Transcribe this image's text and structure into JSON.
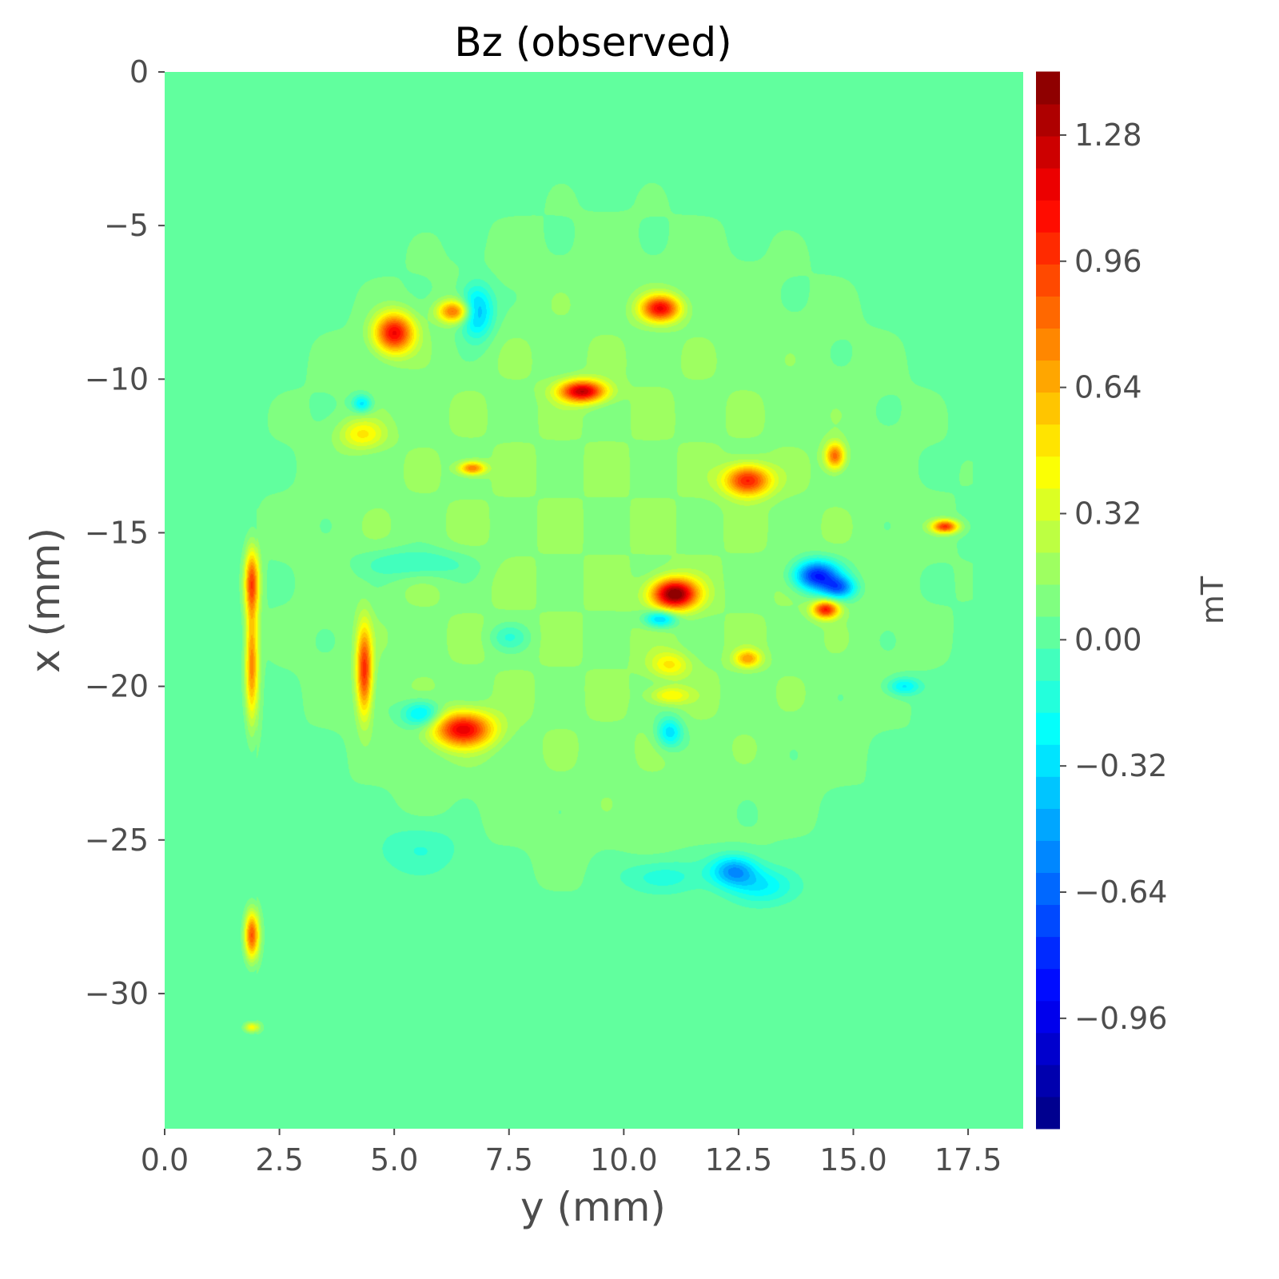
{
  "chart_data": {
    "type": "heatmap",
    "title": "Bz (observed)",
    "xlabel": "y (mm)",
    "ylabel": "x (mm)",
    "colorbar_label": "mT",
    "x_range": [
      0.0,
      18.7
    ],
    "y_range": [
      -34.4,
      0.0
    ],
    "x_ticks": [
      {
        "value": 0.0,
        "label": "0.0"
      },
      {
        "value": 2.5,
        "label": "2.5"
      },
      {
        "value": 5.0,
        "label": "5.0"
      },
      {
        "value": 7.5,
        "label": "7.5"
      },
      {
        "value": 10.0,
        "label": "10.0"
      },
      {
        "value": 12.5,
        "label": "12.5"
      },
      {
        "value": 15.0,
        "label": "15.0"
      },
      {
        "value": 17.5,
        "label": "17.5"
      }
    ],
    "y_ticks": [
      {
        "value": 0,
        "label": "0"
      },
      {
        "value": -5,
        "label": "−5"
      },
      {
        "value": -10,
        "label": "−10"
      },
      {
        "value": -15,
        "label": "−15"
      },
      {
        "value": -20,
        "label": "−20"
      },
      {
        "value": -25,
        "label": "−25"
      },
      {
        "value": -30,
        "label": "−30"
      }
    ],
    "colorbar_range": [
      -1.24,
      1.44
    ],
    "colorbar_ticks": [
      {
        "value": 1.28,
        "label": "1.28"
      },
      {
        "value": 0.96,
        "label": "0.96"
      },
      {
        "value": 0.64,
        "label": "0.64"
      },
      {
        "value": 0.32,
        "label": "0.32"
      },
      {
        "value": 0.0,
        "label": "0.00"
      },
      {
        "value": -0.32,
        "label": "−0.32"
      },
      {
        "value": -0.64,
        "label": "−0.64"
      },
      {
        "value": -0.96,
        "label": "−0.96"
      }
    ],
    "colormap": "jet",
    "background_value": 0.02,
    "edge_strips": [
      {
        "y_from": 0.0,
        "y_to": 2.0,
        "value": -0.02
      },
      {
        "y_from": 17.6,
        "y_to": 18.7,
        "value": -0.02
      }
    ],
    "elevated_region": {
      "y_center": 9.7,
      "x_center": -15.5,
      "half_width_y": 7.2,
      "half_height_x": 10.5,
      "value": 0.12
    },
    "features": [
      {
        "y": 5.0,
        "x": -8.5,
        "value": 1.05,
        "sy": 0.3,
        "sx": 0.45
      },
      {
        "y": 6.3,
        "x": -7.8,
        "value": 0.75,
        "sy": 0.25,
        "sx": 0.25
      },
      {
        "y": 6.8,
        "x": -7.8,
        "value": -0.55,
        "sy": 0.25,
        "sx": 0.6
      },
      {
        "y": 10.8,
        "x": -7.7,
        "value": 1.0,
        "sy": 0.3,
        "sx": 0.3
      },
      {
        "y": 9.1,
        "x": -10.4,
        "value": 1.15,
        "sy": 0.35,
        "sx": 0.25
      },
      {
        "y": 4.3,
        "x": -11.8,
        "value": 0.38,
        "sy": 0.35,
        "sx": 0.35
      },
      {
        "y": 4.3,
        "x": -10.8,
        "value": -0.4,
        "sy": 0.15,
        "sx": 0.2
      },
      {
        "y": 6.7,
        "x": -12.9,
        "value": 0.7,
        "sy": 0.2,
        "sx": 0.15
      },
      {
        "y": 12.7,
        "x": -13.3,
        "value": 0.95,
        "sy": 0.35,
        "sx": 0.35
      },
      {
        "y": 14.6,
        "x": -12.5,
        "value": 0.75,
        "sy": 0.15,
        "sx": 0.3
      },
      {
        "y": 17.0,
        "x": -14.8,
        "value": 0.9,
        "sy": 0.2,
        "sx": 0.15
      },
      {
        "y": 11.1,
        "x": -17.0,
        "value": 1.35,
        "sy": 0.35,
        "sx": 0.35
      },
      {
        "y": 10.8,
        "x": -17.8,
        "value": -0.55,
        "sy": 0.25,
        "sx": 0.2
      },
      {
        "y": 14.2,
        "x": -16.4,
        "value": -0.95,
        "sy": 0.35,
        "sx": 0.35
      },
      {
        "y": 14.7,
        "x": -16.8,
        "value": -0.6,
        "sy": 0.25,
        "sx": 0.25
      },
      {
        "y": 14.4,
        "x": -17.5,
        "value": 0.95,
        "sy": 0.2,
        "sx": 0.2
      },
      {
        "y": 5.5,
        "x": -16.0,
        "value": -0.25,
        "sy": 0.8,
        "sx": 0.35
      },
      {
        "y": 6.5,
        "x": -21.4,
        "value": 1.05,
        "sy": 0.45,
        "sx": 0.4
      },
      {
        "y": 5.6,
        "x": -20.9,
        "value": -0.45,
        "sy": 0.3,
        "sx": 0.3
      },
      {
        "y": 11.0,
        "x": -21.5,
        "value": -0.45,
        "sy": 0.2,
        "sx": 0.35
      },
      {
        "y": 12.7,
        "x": -19.1,
        "value": 0.55,
        "sy": 0.2,
        "sx": 0.2
      },
      {
        "y": 11.0,
        "x": -19.3,
        "value": 0.35,
        "sy": 0.3,
        "sx": 0.3
      },
      {
        "y": 11.0,
        "x": -20.3,
        "value": 0.35,
        "sy": 0.3,
        "sx": 0.2
      },
      {
        "y": 16.1,
        "x": -20.0,
        "value": -0.35,
        "sy": 0.25,
        "sx": 0.2
      },
      {
        "y": 12.4,
        "x": -26.0,
        "value": -0.55,
        "sy": 0.35,
        "sx": 0.35
      },
      {
        "y": 13.0,
        "x": -26.5,
        "value": -0.3,
        "sy": 0.5,
        "sx": 0.4
      },
      {
        "y": 10.8,
        "x": -26.2,
        "value": -0.22,
        "sy": 0.6,
        "sx": 0.4
      },
      {
        "y": 5.6,
        "x": -25.3,
        "value": -0.15,
        "sy": 0.7,
        "sx": 0.6
      },
      {
        "y": 7.5,
        "x": -18.4,
        "value": -0.2,
        "sy": 0.3,
        "sx": 0.3
      },
      {
        "y": 1.9,
        "x": -16.6,
        "value": 0.85,
        "sy": 0.11,
        "sx": 0.75
      },
      {
        "y": 1.9,
        "x": -19.3,
        "value": 0.75,
        "sy": 0.1,
        "sx": 1.3
      },
      {
        "y": 4.35,
        "x": -19.5,
        "value": 0.9,
        "sy": 0.12,
        "sx": 1.0
      },
      {
        "y": 1.9,
        "x": -28.1,
        "value": 0.9,
        "sy": 0.11,
        "sx": 0.55
      },
      {
        "y": 1.9,
        "x": -31.1,
        "value": 0.45,
        "sy": 0.12,
        "sx": 0.12
      }
    ]
  }
}
